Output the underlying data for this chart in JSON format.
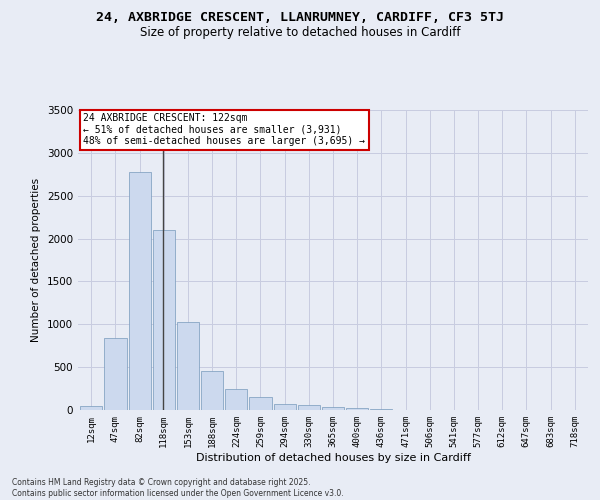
{
  "title_line1": "24, AXBRIDGE CRESCENT, LLANRUMNEY, CARDIFF, CF3 5TJ",
  "title_line2": "Size of property relative to detached houses in Cardiff",
  "xlabel": "Distribution of detached houses by size in Cardiff",
  "ylabel": "Number of detached properties",
  "categories": [
    "12sqm",
    "47sqm",
    "82sqm",
    "118sqm",
    "153sqm",
    "188sqm",
    "224sqm",
    "259sqm",
    "294sqm",
    "330sqm",
    "365sqm",
    "400sqm",
    "436sqm",
    "471sqm",
    "506sqm",
    "541sqm",
    "577sqm",
    "612sqm",
    "647sqm",
    "683sqm",
    "718sqm"
  ],
  "values": [
    50,
    840,
    2780,
    2100,
    1030,
    460,
    245,
    150,
    65,
    55,
    35,
    20,
    10,
    5,
    3,
    2,
    1,
    1,
    0,
    0,
    0
  ],
  "bar_color": "#ccd9ee",
  "bar_edge_color": "#7799bb",
  "grid_color": "#c8cce0",
  "background_color": "#e8ecf5",
  "annotation_box_color": "#ffffff",
  "annotation_box_edge": "#cc0000",
  "vline_color": "#444444",
  "annotation_title": "24 AXBRIDGE CRESCENT: 122sqm",
  "annotation_line2": "← 51% of detached houses are smaller (3,931)",
  "annotation_line3": "48% of semi-detached houses are larger (3,695) →",
  "ylim": [
    0,
    3500
  ],
  "yticks": [
    0,
    500,
    1000,
    1500,
    2000,
    2500,
    3000,
    3500
  ],
  "footer_line1": "Contains HM Land Registry data © Crown copyright and database right 2025.",
  "footer_line2": "Contains public sector information licensed under the Open Government Licence v3.0."
}
